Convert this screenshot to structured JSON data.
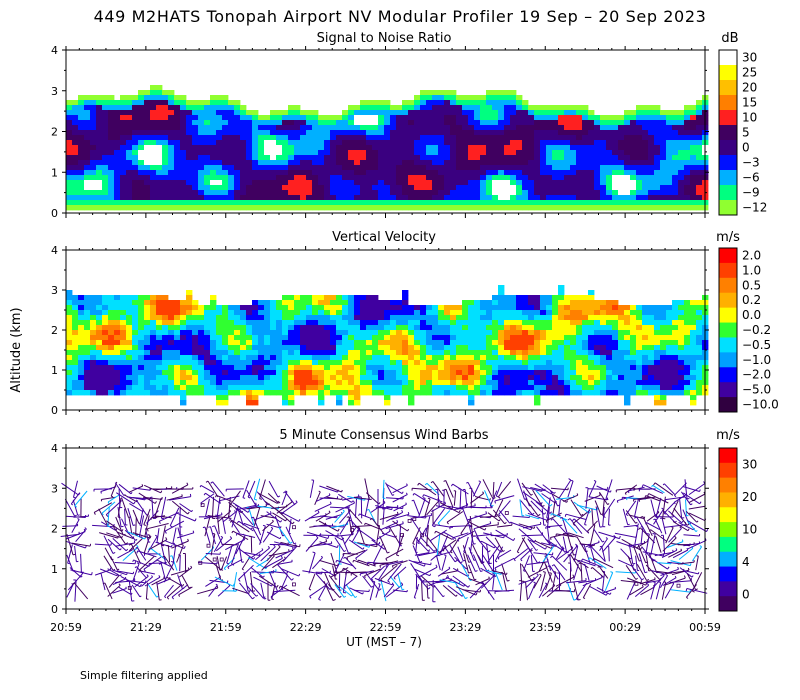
{
  "page": {
    "main_title": "449 M2HATS Tonopah Airport NV Modular Profiler 19 Sep – 20 Sep 2023",
    "y_axis_label": "Altitude (km)",
    "x_axis_label": "UT  (MST – 7)",
    "footnote": "Simple filtering applied"
  },
  "chart_data": [
    {
      "type": "heatmap",
      "title": "Signal to Noise Ratio",
      "units": "dB",
      "ylim": [
        0,
        4
      ],
      "yticks": [
        "0",
        "1",
        "2",
        "3",
        "4"
      ],
      "xticks": [
        "20:59",
        "21:29",
        "21:59",
        "22:29",
        "22:59",
        "23:29",
        "23:59",
        "00:29",
        "00:59"
      ],
      "colorbar_labels": [
        "30",
        "25",
        "20",
        "15",
        "10",
        "5",
        "0",
        "−3",
        "−6",
        "−9",
        "−12"
      ],
      "colors": [
        "#ffffff",
        "#ffff00",
        "#ffbf00",
        "#ff7f00",
        "#ff2020",
        "#400060",
        "#3a0080",
        "#0010ff",
        "#00b0ff",
        "#00ff80",
        "#90ff30"
      ]
    },
    {
      "type": "heatmap",
      "title": "Vertical Velocity",
      "units": "m/s",
      "ylim": [
        0,
        4
      ],
      "yticks": [
        "0",
        "1",
        "2",
        "3",
        "4"
      ],
      "xticks": [
        "20:59",
        "21:29",
        "21:59",
        "22:29",
        "22:59",
        "23:29",
        "23:59",
        "00:29",
        "00:59"
      ],
      "colorbar_labels": [
        "2.0",
        "1.0",
        "0.5",
        "0.2",
        "0.0",
        "−0.2",
        "−0.5",
        "−1.0",
        "−2.0",
        "−5.0",
        "−10.0"
      ],
      "colors": [
        "#ff0000",
        "#ff4000",
        "#ff8000",
        "#ffb000",
        "#ffff00",
        "#30ff30",
        "#00e0ff",
        "#00a0ff",
        "#0000ff",
        "#4000a0",
        "#300040"
      ]
    },
    {
      "type": "scatter",
      "title": "5 Minute Consensus Wind Barbs",
      "units": "m/s",
      "ylim": [
        0,
        4
      ],
      "yticks": [
        "0",
        "1",
        "2",
        "3",
        "4"
      ],
      "xticks": [
        "20:59",
        "21:29",
        "21:59",
        "22:29",
        "22:59",
        "23:29",
        "23:59",
        "00:29",
        "00:59"
      ],
      "colorbar_labels": [
        "30",
        "20",
        "10",
        "4",
        "0"
      ],
      "colors": [
        "#ff0000",
        "#ff4000",
        "#ff8000",
        "#ffb000",
        "#ffff00",
        "#80ff00",
        "#00ff80",
        "#00b0ff",
        "#0000ff",
        "#4000a0",
        "#400060"
      ]
    }
  ]
}
